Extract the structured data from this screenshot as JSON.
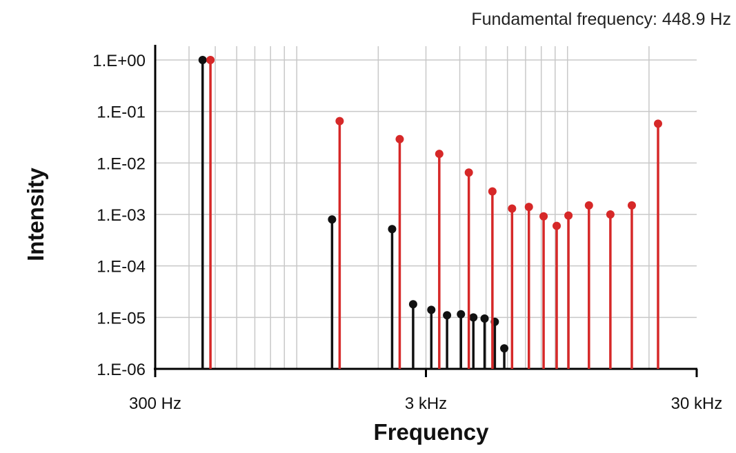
{
  "chart_data": {
    "type": "stem",
    "title": "Fundamental frequency: 448.9 Hz",
    "xlabel": "Frequency",
    "ylabel": "Intensity",
    "x_scale": "log",
    "y_scale": "log",
    "x_unit": "Hz",
    "xlim": [
      300,
      30000
    ],
    "ylim": [
      1e-06,
      1
    ],
    "x_ticks": [
      {
        "value": 300,
        "label": "300 Hz"
      },
      {
        "value": 3000,
        "label": "3 kHz"
      },
      {
        "value": 30000,
        "label": "30 kHz"
      }
    ],
    "y_ticks": [
      {
        "value": 1,
        "label": "1.E+00"
      },
      {
        "value": 0.1,
        "label": "1.E-01"
      },
      {
        "value": 0.01,
        "label": "1.E-02"
      },
      {
        "value": 0.001,
        "label": "1.E-03"
      },
      {
        "value": 0.0001,
        "label": "1.E-04"
      },
      {
        "value": 1e-05,
        "label": "1.E-05"
      },
      {
        "value": 1e-06,
        "label": "1.E-06"
      }
    ],
    "grid": true,
    "series": [
      {
        "color": "#111111",
        "points": [
          {
            "x": 449,
            "y": 1.0
          },
          {
            "x": 1350,
            "y": 0.0008
          },
          {
            "x": 2250,
            "y": 0.00052
          },
          {
            "x": 2690,
            "y": 1.8e-05
          },
          {
            "x": 3140,
            "y": 1.4e-05
          },
          {
            "x": 3590,
            "y": 1.1e-05
          },
          {
            "x": 4040,
            "y": 1.15e-05
          },
          {
            "x": 4490,
            "y": 1e-05
          },
          {
            "x": 4940,
            "y": 9.5e-06
          },
          {
            "x": 5390,
            "y": 8.2e-06
          },
          {
            "x": 5840,
            "y": 2.5e-06
          }
        ]
      },
      {
        "color": "#d62828",
        "points": [
          {
            "x": 480,
            "y": 1.0
          },
          {
            "x": 1440,
            "y": 0.065
          },
          {
            "x": 2400,
            "y": 0.029
          },
          {
            "x": 3360,
            "y": 0.015
          },
          {
            "x": 4320,
            "y": 0.0065
          },
          {
            "x": 5280,
            "y": 0.0028
          },
          {
            "x": 6240,
            "y": 0.0013
          },
          {
            "x": 7200,
            "y": 0.0014
          },
          {
            "x": 8160,
            "y": 0.00092
          },
          {
            "x": 9120,
            "y": 0.0006
          },
          {
            "x": 10080,
            "y": 0.00095
          },
          {
            "x": 12000,
            "y": 0.0015
          },
          {
            "x": 14400,
            "y": 0.001
          },
          {
            "x": 17280,
            "y": 0.0015
          },
          {
            "x": 21600,
            "y": 0.058
          }
        ]
      }
    ]
  }
}
